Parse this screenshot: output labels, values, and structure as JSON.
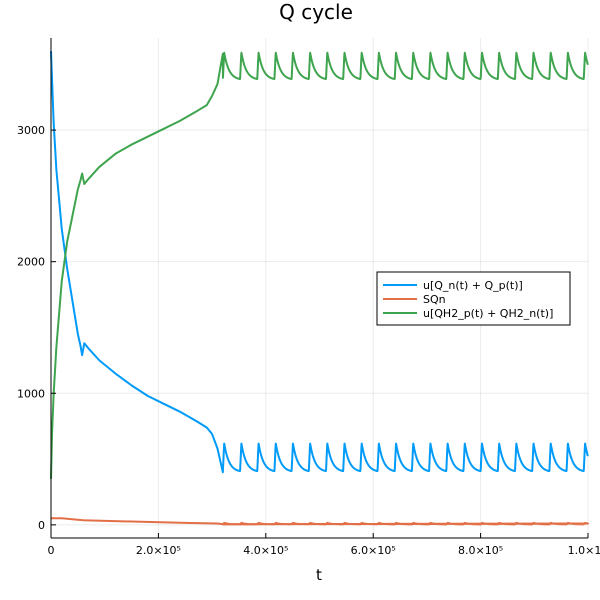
{
  "chart_data": {
    "type": "line",
    "title": "Q cycle",
    "xlabel": "t",
    "ylabel": "",
    "xlim": [
      0,
      1000000
    ],
    "ylim": [
      -100,
      3700
    ],
    "x_ticks": [
      {
        "value": 0,
        "label": "0"
      },
      {
        "value": 200000,
        "label": "2.0×10⁵"
      },
      {
        "value": 400000,
        "label": "4.0×10⁵"
      },
      {
        "value": 600000,
        "label": "6.0×10⁵"
      },
      {
        "value": 800000,
        "label": "8.0×10⁵"
      },
      {
        "value": 1000000,
        "label": "1.0×10"
      }
    ],
    "y_ticks": [
      {
        "value": 0,
        "label": "0"
      },
      {
        "value": 1000,
        "label": "1000"
      },
      {
        "value": 2000,
        "label": "2000"
      },
      {
        "value": 3000,
        "label": "3000"
      }
    ],
    "grid": true,
    "legend_position": "right",
    "series": [
      {
        "name": "u[Q_n(t) + Q_p(t)]",
        "color": "#009af9",
        "x": [
          0,
          5000,
          10000,
          20000,
          30000,
          40000,
          50000,
          55000,
          58000,
          62000,
          70000,
          90000,
          120000,
          150000,
          180000,
          210000,
          240000,
          270000,
          290000,
          300000,
          310000,
          320000
        ],
        "y": [
          3600,
          3050,
          2700,
          2250,
          1950,
          1700,
          1450,
          1360,
          1290,
          1380,
          1340,
          1250,
          1150,
          1060,
          980,
          920,
          860,
          790,
          740,
          690,
          580,
          400
        ],
        "oscillation": {
          "start": 320000,
          "end": 1000000,
          "low": 400,
          "high": 620
        }
      },
      {
        "name": "SQn",
        "color": "#e26f46",
        "x": [
          0,
          20000,
          60000,
          150000,
          250000,
          310000,
          320000,
          1000000
        ],
        "y": [
          50,
          50,
          35,
          25,
          15,
          10,
          5,
          10
        ],
        "oscillation": {
          "start": 320000,
          "end": 1000000,
          "low": 3,
          "high": 15
        }
      },
      {
        "name": "u[QH2_p(t) + QH2_n(t)]",
        "color": "#3ea44e",
        "x": [
          0,
          2000,
          5000,
          10000,
          20000,
          30000,
          40000,
          50000,
          55000,
          58000,
          62000,
          70000,
          90000,
          120000,
          150000,
          180000,
          210000,
          240000,
          270000,
          290000,
          300000,
          310000,
          320000
        ],
        "y": [
          350,
          700,
          1000,
          1350,
          1850,
          2150,
          2350,
          2550,
          2620,
          2670,
          2590,
          2630,
          2720,
          2820,
          2890,
          2950,
          3010,
          3070,
          3140,
          3190,
          3260,
          3350,
          3580
        ],
        "oscillation": {
          "start": 320000,
          "end": 1000000,
          "low": 3380,
          "high": 3590
        }
      }
    ]
  }
}
